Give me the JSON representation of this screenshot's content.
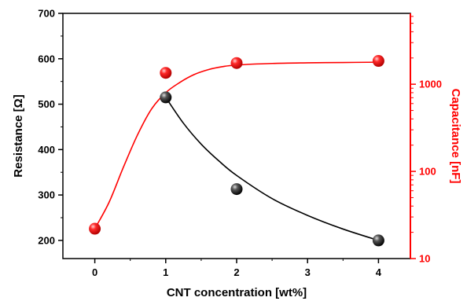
{
  "chart_data": {
    "type": "scatter",
    "xlabel": "CNT concentration [wt%]",
    "ylabel_left": "Resistance [Ω]",
    "ylabel_right": "Capacitance [nF]",
    "x_ticks": [
      "0",
      "1",
      "2",
      "3",
      "4"
    ],
    "y_left_ticks": [
      "200",
      "300",
      "400",
      "500",
      "600",
      "700"
    ],
    "y_right_ticks": [
      "10",
      "100",
      "1000"
    ],
    "xlim": [
      -0.45,
      4.45
    ],
    "ylim_left": [
      160,
      700
    ],
    "ylim_right": [
      10,
      6500
    ],
    "y_right_scale": "log",
    "series": [
      {
        "axis": "left",
        "color": "#000000",
        "x": [
          1,
          2,
          4
        ],
        "y": [
          515,
          313,
          200
        ],
        "fit": [
          [
            1,
            515
          ],
          [
            1.25,
            458
          ],
          [
            1.5,
            412
          ],
          [
            1.75,
            375
          ],
          [
            2,
            343
          ],
          [
            2.5,
            292
          ],
          [
            3,
            255
          ],
          [
            3.5,
            225
          ],
          [
            4,
            200
          ]
        ]
      },
      {
        "axis": "right",
        "color": "#ff0000",
        "x": [
          0,
          1,
          2,
          4
        ],
        "y": [
          22,
          1350,
          1750,
          1850
        ],
        "fit": [
          [
            0,
            22
          ],
          [
            0.2,
            44
          ],
          [
            0.4,
            110
          ],
          [
            0.6,
            260
          ],
          [
            0.8,
            520
          ],
          [
            1,
            800
          ],
          [
            1.2,
            1050
          ],
          [
            1.4,
            1290
          ],
          [
            1.6,
            1470
          ],
          [
            1.8,
            1590
          ],
          [
            2,
            1660
          ],
          [
            2.5,
            1730
          ],
          [
            3,
            1760
          ],
          [
            3.5,
            1775
          ],
          [
            4,
            1790
          ]
        ]
      }
    ],
    "grid": false,
    "legend": "none"
  },
  "colors": {
    "left_axis": "#000000",
    "right_axis": "#ff0000"
  }
}
